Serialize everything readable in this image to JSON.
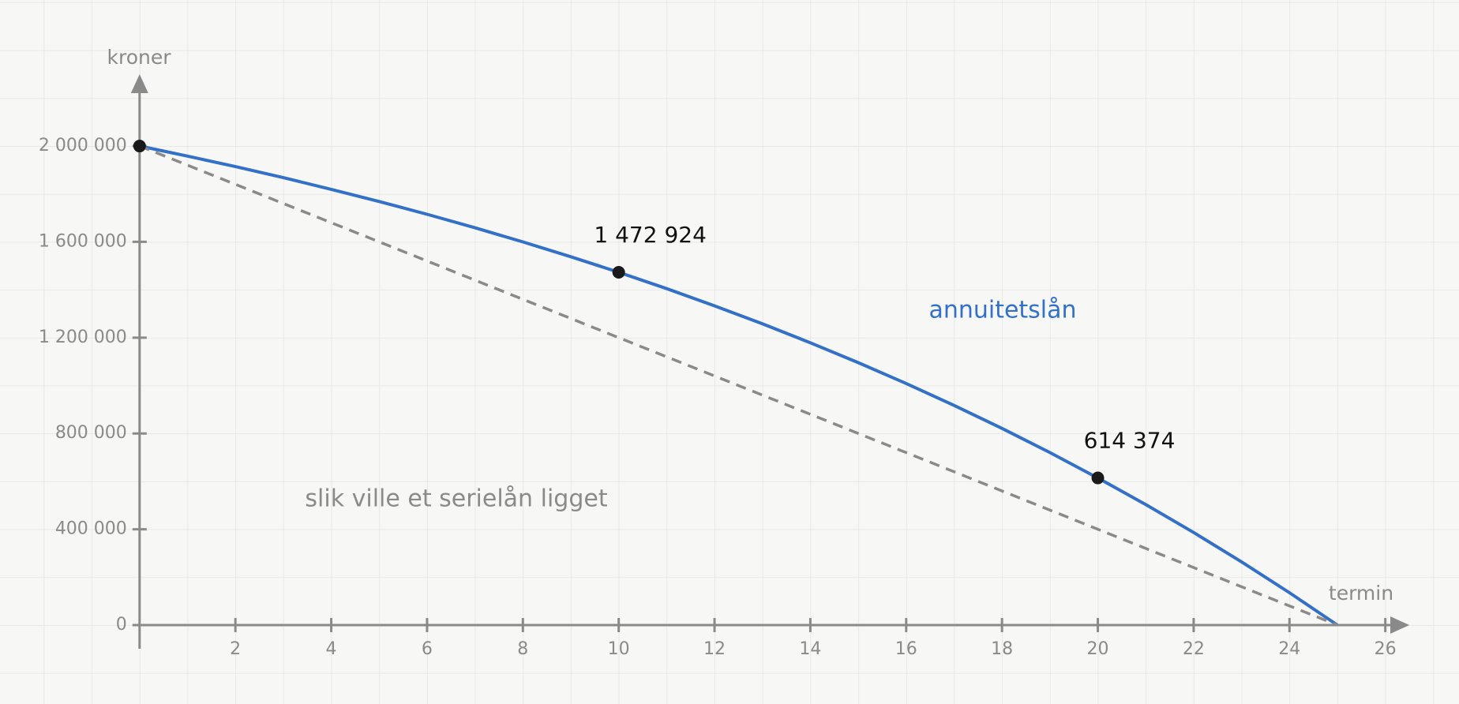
{
  "chart_data": {
    "type": "line",
    "xlabel": "termin",
    "ylabel": "kroner",
    "xlim": [
      0,
      26.5
    ],
    "ylim": [
      0,
      2300000
    ],
    "xticks": [
      2,
      4,
      6,
      8,
      10,
      12,
      14,
      16,
      18,
      20,
      22,
      24,
      26
    ],
    "yticks": [
      0,
      {
        "value": 400000,
        "label": "400 000"
      },
      {
        "value": 800000,
        "label": "800 000"
      },
      {
        "value": 1200000,
        "label": "1 200 000"
      },
      {
        "value": 1600000,
        "label": "1 600 000"
      },
      {
        "value": 2000000,
        "label": "2 000 000"
      }
    ],
    "grid": true,
    "series": [
      {
        "name": "annuitetslån",
        "color": "#3370c8",
        "dashed": false,
        "x": [
          0,
          1,
          2,
          3,
          4,
          5,
          6,
          7,
          8,
          9,
          10,
          11,
          12,
          13,
          14,
          15,
          16,
          17,
          18,
          19,
          20,
          21,
          22,
          23,
          24,
          25
        ],
        "values": [
          2000000,
          1958095,
          1914095,
          1867895,
          1819385,
          1768449,
          1714966,
          1658809,
          1599844,
          1537931,
          1472924,
          1404665,
          1332993,
          1257738,
          1178720,
          1095751,
          1008634,
          917161,
          821114,
          720265,
          614374,
          503188,
          386442,
          263859,
          135147,
          0
        ],
        "value_labels": [
          null,
          null,
          null,
          null,
          null,
          null,
          null,
          null,
          null,
          null,
          "1 472 924",
          null,
          null,
          null,
          null,
          null,
          null,
          null,
          null,
          null,
          "614 374",
          null,
          null,
          null,
          null,
          null
        ],
        "markers": [
          0,
          10,
          20
        ]
      },
      {
        "name": "slik ville et serielån ligget",
        "color": "#8a8a8a",
        "dashed": true,
        "x": [
          0,
          25
        ],
        "values": [
          2000000,
          0
        ]
      }
    ]
  }
}
